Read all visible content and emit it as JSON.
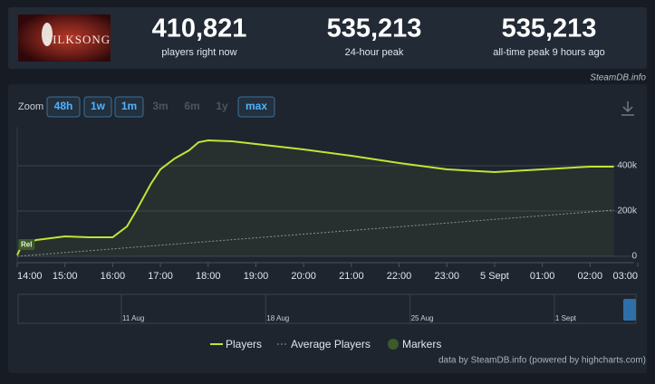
{
  "logo_text": "SILKSONG",
  "stats": [
    {
      "value": "410,821",
      "label": "players right now"
    },
    {
      "value": "535,213",
      "label": "24-hour peak"
    },
    {
      "value": "535,213",
      "label": "all-time peak 9 hours ago"
    }
  ],
  "brand": "SteamDB.info",
  "zoom": {
    "label": "Zoom",
    "buttons": [
      "48h",
      "1w",
      "1m",
      "3m",
      "6m",
      "1y",
      "max"
    ],
    "enabled": [
      true,
      true,
      true,
      false,
      false,
      false,
      true
    ]
  },
  "credits": "data by SteamDB.info (powered by highcharts.com)",
  "navigator": {
    "labels": [
      "11 Aug",
      "18 Aug",
      "25 Aug",
      "1 Sept"
    ]
  },
  "chart_data": {
    "type": "line",
    "x": [
      14,
      14.1,
      14.4,
      15,
      15.5,
      16,
      16.3,
      16.5,
      16.8,
      17,
      17.3,
      17.6,
      17.8,
      18,
      18.5,
      19,
      20,
      21,
      22,
      23,
      24,
      25,
      26,
      26.5
    ],
    "series": [
      {
        "name": "Players",
        "color": "#c3e335",
        "values": [
          5000,
          52000,
          72000,
          88000,
          84000,
          84000,
          132000,
          204000,
          320000,
          384000,
          432000,
          468000,
          504000,
          512000,
          508000,
          496000,
          472000,
          444000,
          412000,
          384000,
          372000,
          384000,
          396000,
          396000
        ]
      },
      {
        "name": "Average Players",
        "color": "#8a939d",
        "values": [
          0,
          1600,
          6500,
          16300,
          24500,
          32600,
          37500,
          40800,
          45700,
          49000,
          53900,
          58800,
          62000,
          65300,
          73400,
          81600,
          97900,
          114200,
          130600,
          146900,
          163200,
          179500,
          195800,
          204000
        ]
      }
    ],
    "markers": {
      "name": "Markers",
      "color": "#3d5a2a",
      "points": [
        {
          "x": 14.1,
          "label": "Rel"
        }
      ]
    },
    "xlim": [
      14,
      27
    ],
    "xticks": [
      {
        "value": 14,
        "label": "14:00"
      },
      {
        "value": 15,
        "label": "15:00"
      },
      {
        "value": 16,
        "label": "16:00"
      },
      {
        "value": 17,
        "label": "17:00"
      },
      {
        "value": 18,
        "label": "18:00"
      },
      {
        "value": 19,
        "label": "19:00"
      },
      {
        "value": 20,
        "label": "20:00"
      },
      {
        "value": 21,
        "label": "21:00"
      },
      {
        "value": 22,
        "label": "22:00"
      },
      {
        "value": 23,
        "label": "23:00"
      },
      {
        "value": 24,
        "label": "5 Sept"
      },
      {
        "value": 25,
        "label": "01:00"
      },
      {
        "value": 26,
        "label": "02:00"
      },
      {
        "value": 27,
        "label": "03:00"
      }
    ],
    "ylim": [
      0,
      570000
    ],
    "yticks": [
      0,
      {
        "value": 200000,
        "label": "200k"
      },
      {
        "value": 400000,
        "label": "400k"
      }
    ],
    "grid": true
  }
}
